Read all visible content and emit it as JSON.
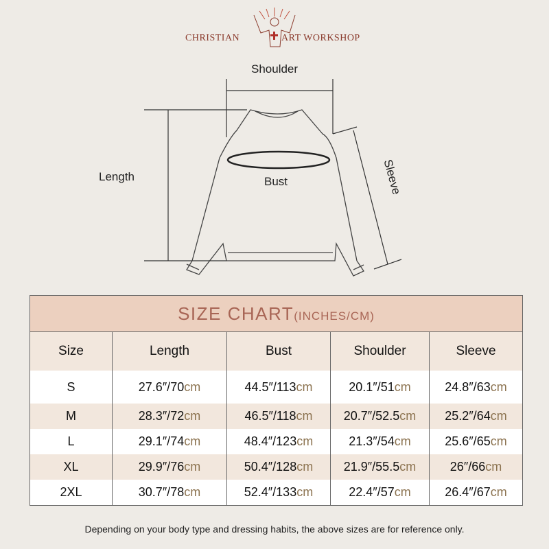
{
  "brand": {
    "left": "CHRISTIAN",
    "right": "ART WORKSHOP"
  },
  "diagram": {
    "shoulder": "Shoulder",
    "length": "Length",
    "bust": "Bust",
    "sleeve": "Sleeve"
  },
  "table": {
    "title": "SIZE CHART",
    "title_unit": "(INCHES/CM)",
    "headers": [
      "Size",
      "Length",
      "Bust",
      "Shoulder",
      "Sleeve"
    ],
    "rows": [
      [
        "S",
        "27.6″/70",
        "44.5″/113",
        "20.1″/51",
        "24.8″/63"
      ],
      [
        "M",
        "28.3″/72",
        "46.5″/118",
        "20.7″/52.5",
        "25.2″/64"
      ],
      [
        "L",
        "29.1″/74",
        "48.4″/123",
        "21.3″/54",
        "25.6″/65"
      ],
      [
        "XL",
        "29.9″/76",
        "50.4″/128",
        "21.9″/55.5",
        "26″/66"
      ],
      [
        "2XL",
        "30.7″/78",
        "52.4″/133",
        "22.4″/57",
        "26.4″/67"
      ]
    ],
    "unit": "cm"
  },
  "note": "Depending on your body type and dressing habits, the above sizes are for reference only.",
  "colors": {
    "title_band": "#ecd0bf",
    "title_text": "#a86555",
    "brand": "#8a3a2c",
    "cm": "#8c7350"
  }
}
